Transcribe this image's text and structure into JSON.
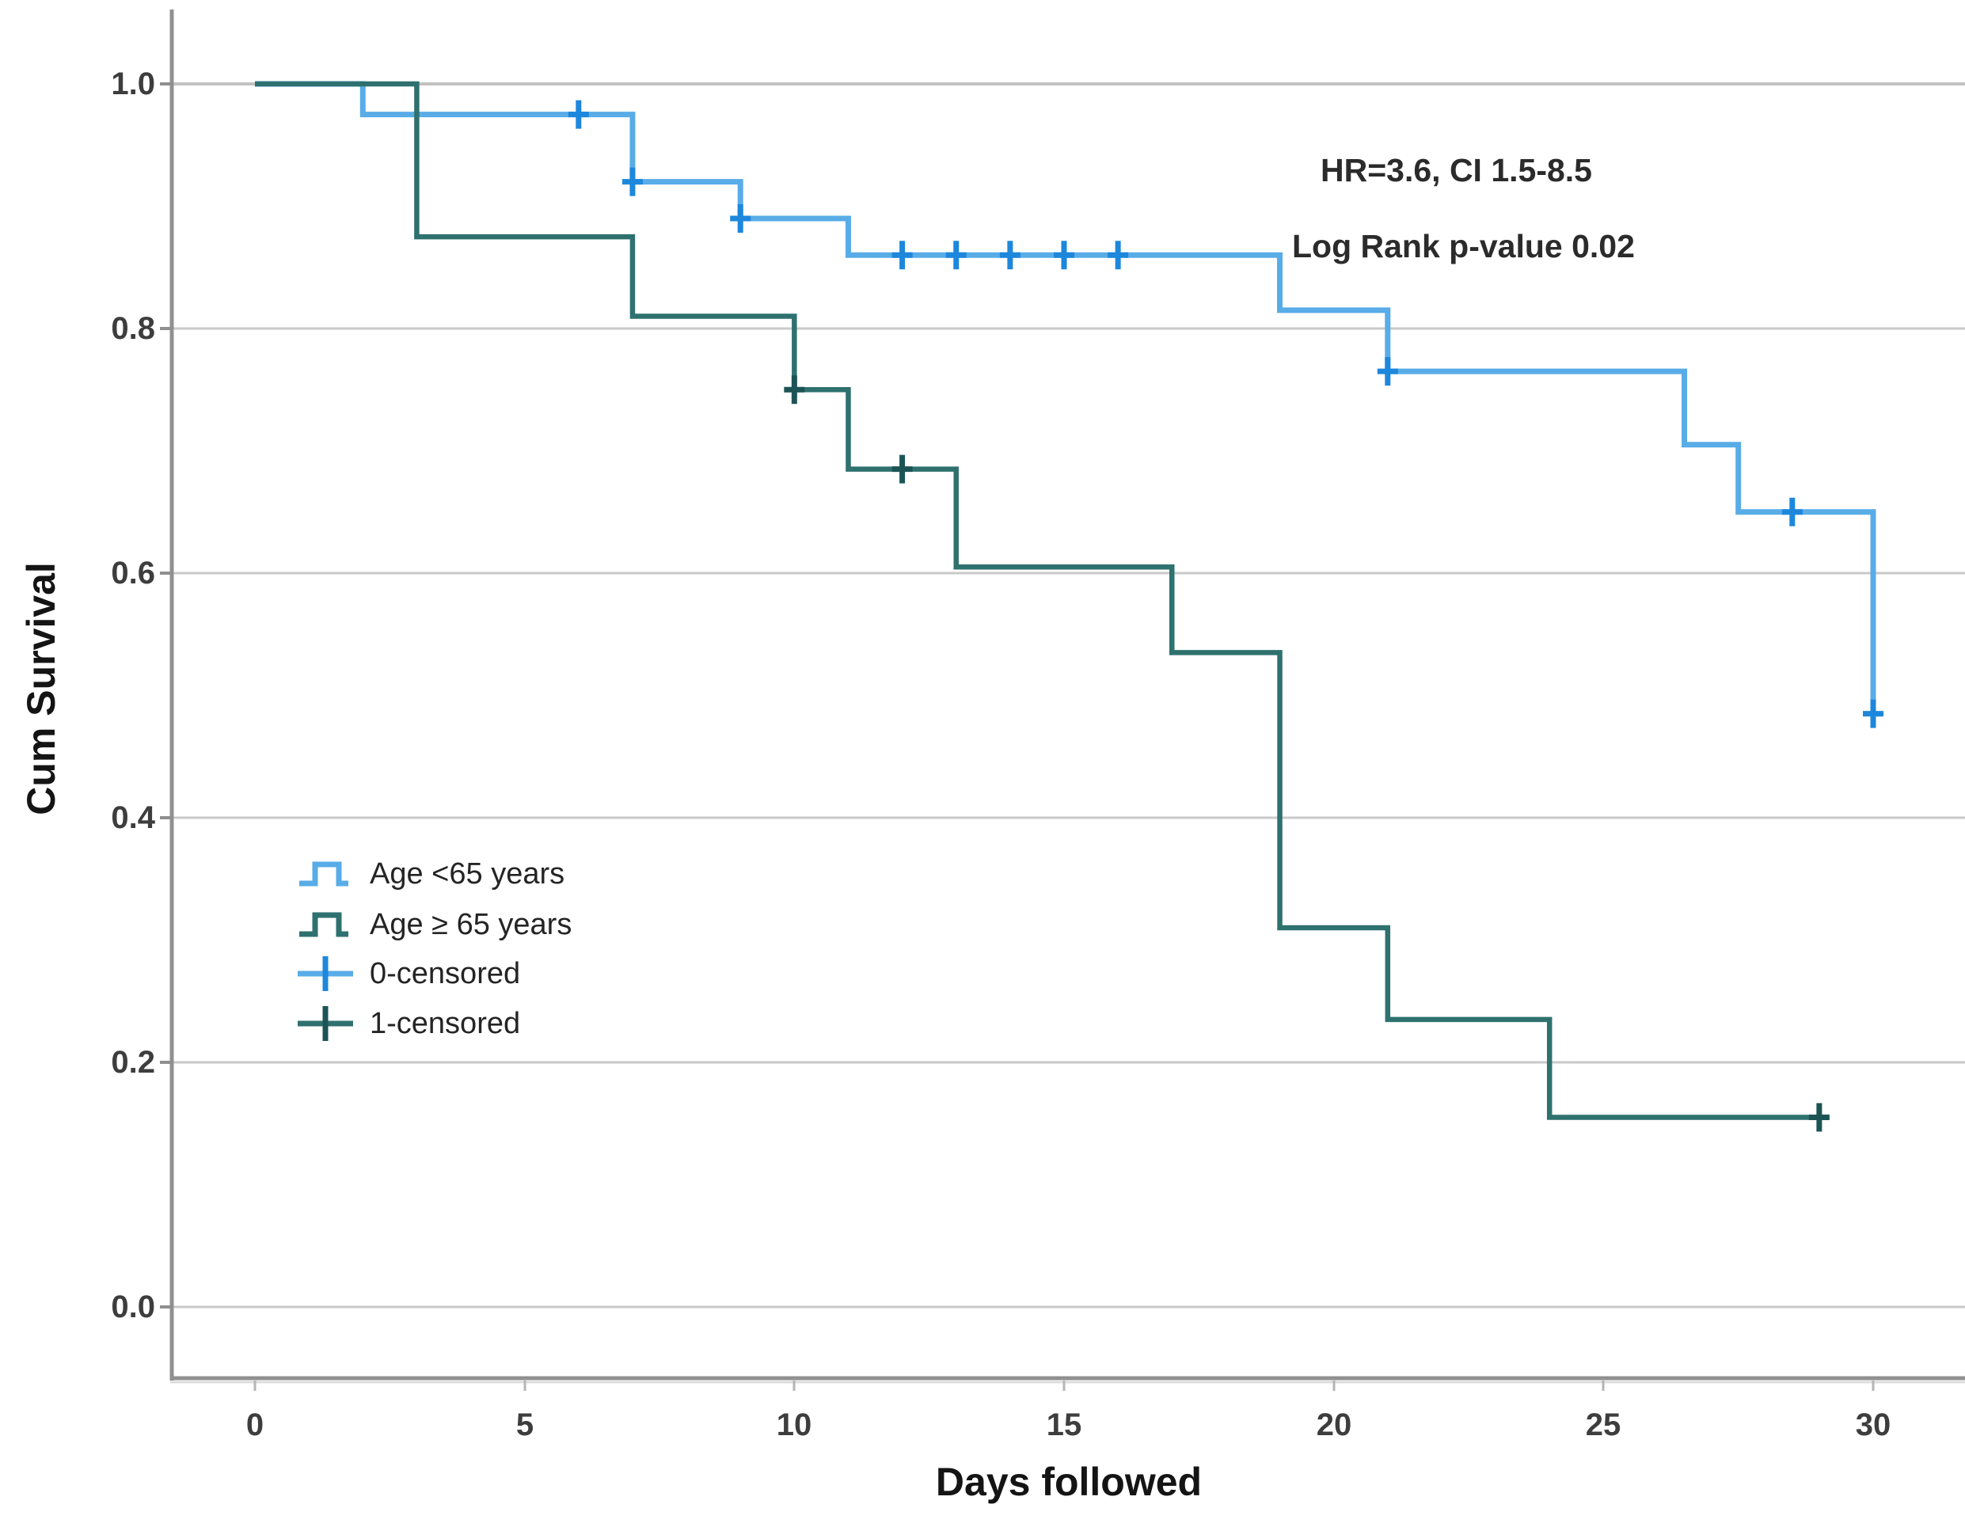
{
  "chart_data": {
    "type": "line",
    "subtype": "kaplan-meier-step",
    "title": "",
    "xlabel": "Days followed",
    "ylabel": "Cum Survival",
    "xlim": [
      0,
      30
    ],
    "ylim": [
      0.0,
      1.0
    ],
    "grid": "horizontal",
    "legend_position": "inside-left-middle",
    "xticks": [
      "0",
      "5",
      "10",
      "15",
      "20",
      "25",
      "30"
    ],
    "yticks": [
      "1.0",
      "0.8",
      "0.6",
      "0.4",
      "0.2",
      "0.0"
    ],
    "xtick_values": [
      0,
      5,
      10,
      15,
      20,
      25,
      30
    ],
    "ytick_values": [
      1.0,
      0.8,
      0.6,
      0.4,
      0.2,
      0.0
    ],
    "annotations": [
      "HR=3.6, CI 1.5-8.5",
      "Log Rank p-value 0.02"
    ],
    "legend": [
      "Age <65 years",
      "Age ≥ 65 years",
      "0-censored",
      "1-censored"
    ],
    "series": [
      {
        "name": "Age <65 years",
        "color": "#58ace7",
        "censor_color": "#1d87dc",
        "steps": [
          [
            0,
            1.0
          ],
          [
            2,
            0.975
          ],
          [
            7,
            0.92
          ],
          [
            9,
            0.89
          ],
          [
            11,
            0.86
          ],
          [
            19,
            0.815
          ],
          [
            21,
            0.765
          ],
          [
            26.5,
            0.705
          ],
          [
            27.5,
            0.65
          ],
          [
            30,
            0.485
          ]
        ],
        "end": [
          30,
          0.485
        ],
        "censored": [
          [
            6,
            0.975
          ],
          [
            7,
            0.92
          ],
          [
            9,
            0.89
          ],
          [
            12,
            0.86
          ],
          [
            13,
            0.86
          ],
          [
            14,
            0.86
          ],
          [
            15,
            0.86
          ],
          [
            16,
            0.86
          ],
          [
            21,
            0.765
          ],
          [
            28.5,
            0.65
          ],
          [
            30,
            0.485
          ]
        ]
      },
      {
        "name": "Age ≥ 65 years",
        "color": "#2e716f",
        "censor_color": "#1c5456",
        "steps": [
          [
            0,
            1.0
          ],
          [
            3,
            0.875
          ],
          [
            7,
            0.81
          ],
          [
            10,
            0.75
          ],
          [
            11,
            0.685
          ],
          [
            13,
            0.605
          ],
          [
            17,
            0.535
          ],
          [
            19,
            0.31
          ],
          [
            21,
            0.235
          ],
          [
            24,
            0.155
          ]
        ],
        "end": [
          29,
          0.155
        ],
        "censored": [
          [
            10,
            0.75
          ],
          [
            12,
            0.685
          ],
          [
            29,
            0.155
          ]
        ]
      }
    ],
    "colors": {
      "background": "#ffffff",
      "gridline": "#c9c9c9",
      "axis": "#909090",
      "text": "#2b2b2b"
    }
  }
}
